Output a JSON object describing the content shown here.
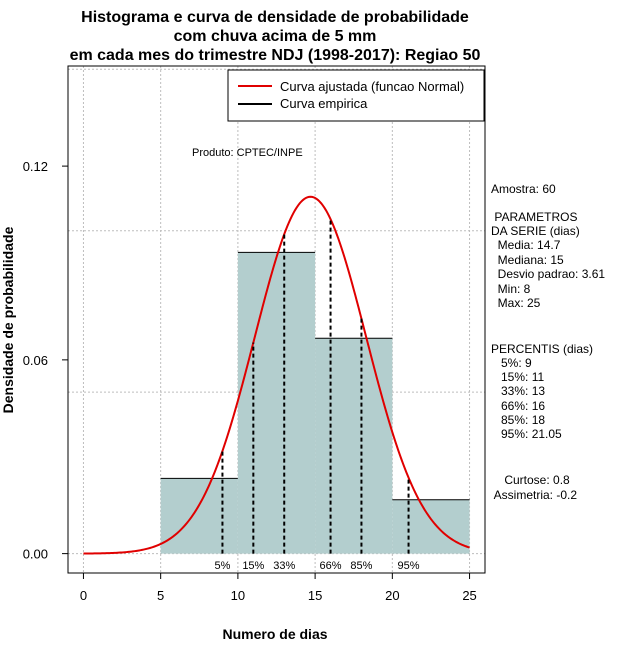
{
  "chart_data": {
    "type": "histogram",
    "title_lines": [
      "Histograma e curva de densidade de probabilidade",
      "com chuva acima de 5 mm",
      "em cada mes do trimestre NDJ (1998-2017): Regiao 50"
    ],
    "xlabel": "Numero de dias",
    "ylabel": "Densidade de probabilidade",
    "xlim": [
      -1,
      26
    ],
    "ylim": [
      -0.006,
      0.151
    ],
    "x_ticks": [
      0,
      5,
      10,
      15,
      20,
      25
    ],
    "y_ticks": [
      0.0,
      0.06,
      0.12
    ],
    "y_tick_labels": [
      "0.00",
      "0.06",
      "0.12"
    ],
    "x_grid": [
      0,
      5,
      10,
      15,
      20,
      25
    ],
    "y_grid": [
      0.0,
      0.05,
      0.1,
      0.15
    ],
    "bins": [
      {
        "start": 5,
        "end": 10,
        "density": 0.0233
      },
      {
        "start": 10,
        "end": 15,
        "density": 0.0933
      },
      {
        "start": 15,
        "end": 20,
        "density": 0.0667
      },
      {
        "start": 20,
        "end": 25,
        "density": 0.0167
      }
    ],
    "normal_curve": {
      "mean": 14.7,
      "sd": 3.61,
      "from": 0,
      "to": 25,
      "color": "#e00000"
    },
    "percentiles": [
      {
        "label": "5%",
        "x": 9
      },
      {
        "label": "15%",
        "x": 11
      },
      {
        "label": "33%",
        "x": 13
      },
      {
        "label": "66%",
        "x": 16
      },
      {
        "label": "85%",
        "x": 18
      },
      {
        "label": "95%",
        "x": 21.05
      }
    ],
    "legend": [
      {
        "label": "Curva ajustada (funcao Normal)",
        "color": "#e00000"
      },
      {
        "label": "Curva empirica",
        "color": "#000000"
      }
    ],
    "bar_fill": "#b3cece",
    "annotation": "Produto: CPTEC/INPE"
  },
  "stats": {
    "lines": [
      "Amostra: 60",
      " PARAMETROS",
      "DA SERIE (dias)",
      "  Media: 14.7",
      "  Mediana: 15",
      "  Desvio padrao: 3.61",
      "  Min: 8",
      "  Max: 25",
      "PERCENTIS (dias)",
      "   5%: 9",
      "   15%: 11",
      "   33%: 13",
      "   66%: 16",
      "   85%: 18",
      "   95%: 21.05",
      "    Curtose: 0.8",
      " Assimetria: -0.2"
    ]
  }
}
